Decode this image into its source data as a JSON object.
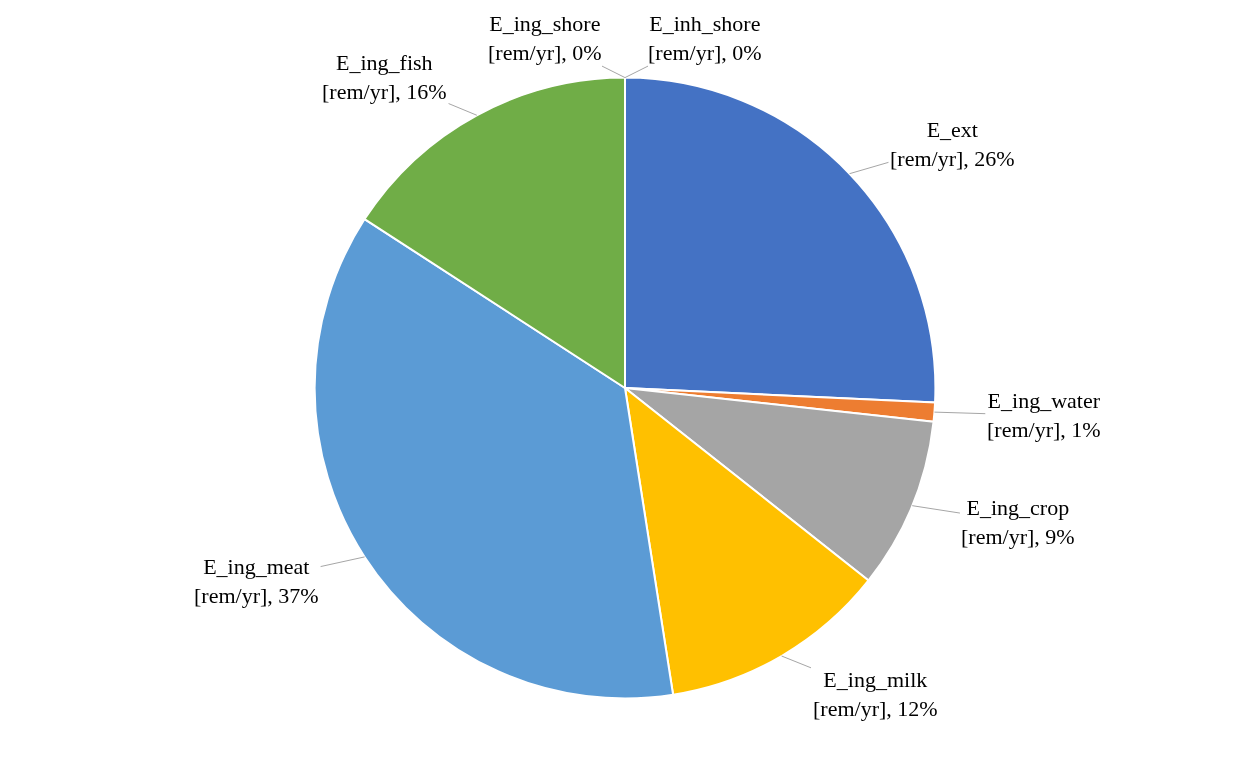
{
  "chart_data": {
    "type": "pie",
    "categories": [
      "E_ext [rem/yr], 26%",
      "E_ing_water [rem/yr], 1%",
      "E_ing_crop [rem/yr], 9%",
      "E_ing_milk [rem/yr], 12%",
      "E_ing_meat [rem/yr], 37%",
      "E_ing_fish [rem/yr], 16%",
      "E_ing_shore [rem/yr], 0%",
      "E_inh_shore [rem/yr], 0%"
    ],
    "values": [
      26,
      1,
      9,
      12,
      37,
      16,
      0,
      0
    ],
    "colors": [
      "#4472c4",
      "#ed7d31",
      "#a5a5a5",
      "#ffc000",
      "#5b9bd5",
      "#70ad47",
      "#264478",
      "#9e480e"
    ],
    "legend": false
  }
}
